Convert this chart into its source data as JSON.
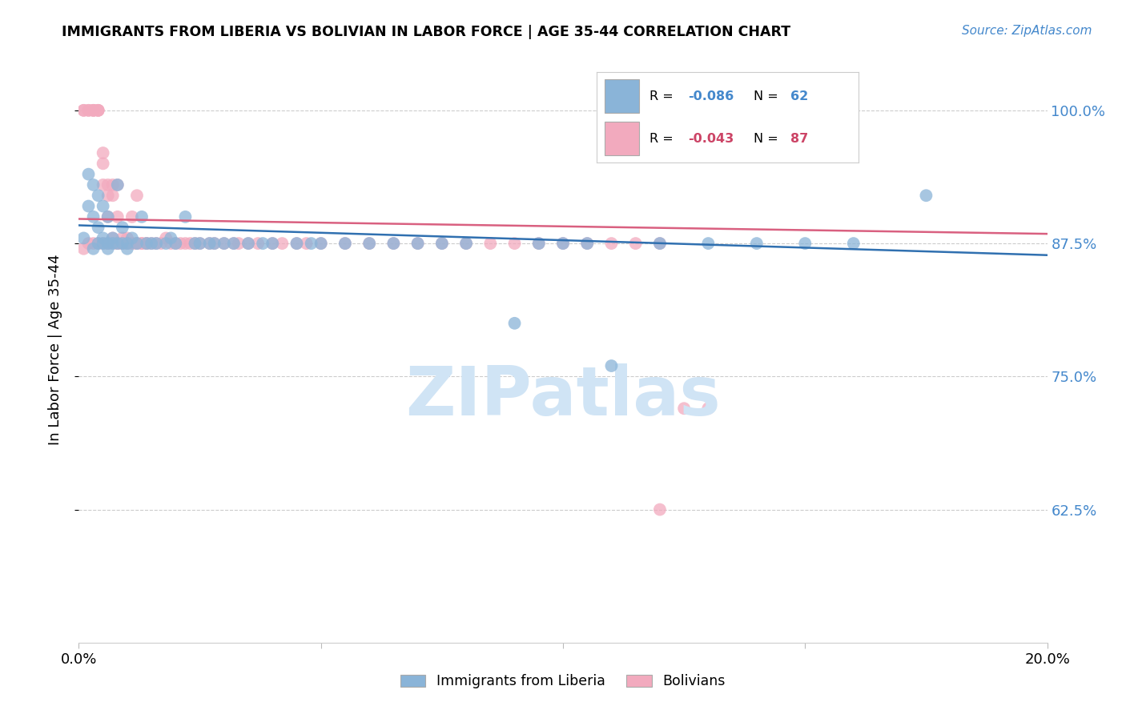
{
  "title": "IMMIGRANTS FROM LIBERIA VS BOLIVIAN IN LABOR FORCE | AGE 35-44 CORRELATION CHART",
  "source": "Source: ZipAtlas.com",
  "ylabel": "In Labor Force | Age 35-44",
  "xlim": [
    0.0,
    0.2
  ],
  "ylim": [
    0.5,
    1.05
  ],
  "yticks": [
    0.625,
    0.75,
    0.875,
    1.0
  ],
  "ytick_labels": [
    "62.5%",
    "75.0%",
    "87.5%",
    "100.0%"
  ],
  "xticks": [
    0.0,
    0.05,
    0.1,
    0.15,
    0.2
  ],
  "xtick_labels": [
    "0.0%",
    "",
    "",
    "",
    "20.0%"
  ],
  "legend_label_blue": "Immigrants from Liberia",
  "legend_label_pink": "Bolivians",
  "R_blue": -0.086,
  "N_blue": 62,
  "R_pink": -0.043,
  "N_pink": 87,
  "blue_color": "#8ab4d8",
  "pink_color": "#f2aabe",
  "blue_line_color": "#3070b0",
  "pink_line_color": "#d96080",
  "watermark_color": "#d0e4f5",
  "blue_x": [
    0.001,
    0.002,
    0.002,
    0.003,
    0.003,
    0.003,
    0.004,
    0.004,
    0.004,
    0.005,
    0.005,
    0.005,
    0.006,
    0.006,
    0.006,
    0.007,
    0.007,
    0.008,
    0.008,
    0.009,
    0.009,
    0.01,
    0.01,
    0.011,
    0.012,
    0.013,
    0.014,
    0.015,
    0.016,
    0.018,
    0.019,
    0.02,
    0.022,
    0.024,
    0.025,
    0.027,
    0.028,
    0.03,
    0.032,
    0.035,
    0.038,
    0.04,
    0.045,
    0.048,
    0.05,
    0.055,
    0.06,
    0.065,
    0.07,
    0.075,
    0.08,
    0.09,
    0.095,
    0.1,
    0.105,
    0.11,
    0.12,
    0.13,
    0.14,
    0.15,
    0.16,
    0.175
  ],
  "blue_y": [
    0.88,
    0.91,
    0.94,
    0.87,
    0.9,
    0.93,
    0.875,
    0.89,
    0.92,
    0.875,
    0.88,
    0.91,
    0.875,
    0.87,
    0.9,
    0.875,
    0.88,
    0.875,
    0.93,
    0.875,
    0.89,
    0.875,
    0.87,
    0.88,
    0.875,
    0.9,
    0.875,
    0.875,
    0.875,
    0.875,
    0.88,
    0.875,
    0.9,
    0.875,
    0.875,
    0.875,
    0.875,
    0.875,
    0.875,
    0.875,
    0.875,
    0.875,
    0.875,
    0.875,
    0.875,
    0.875,
    0.875,
    0.875,
    0.875,
    0.875,
    0.875,
    0.8,
    0.875,
    0.875,
    0.875,
    0.76,
    0.875,
    0.875,
    0.875,
    0.875,
    0.875,
    0.92
  ],
  "pink_x": [
    0.001,
    0.001,
    0.002,
    0.002,
    0.003,
    0.003,
    0.003,
    0.004,
    0.004,
    0.004,
    0.005,
    0.005,
    0.005,
    0.006,
    0.006,
    0.006,
    0.006,
    0.007,
    0.007,
    0.007,
    0.008,
    0.008,
    0.008,
    0.009,
    0.009,
    0.01,
    0.01,
    0.011,
    0.011,
    0.012,
    0.012,
    0.013,
    0.014,
    0.015,
    0.016,
    0.017,
    0.018,
    0.019,
    0.02,
    0.021,
    0.022,
    0.023,
    0.024,
    0.025,
    0.027,
    0.028,
    0.03,
    0.032,
    0.033,
    0.035,
    0.037,
    0.04,
    0.042,
    0.045,
    0.047,
    0.05,
    0.055,
    0.06,
    0.065,
    0.07,
    0.075,
    0.08,
    0.085,
    0.09,
    0.095,
    0.1,
    0.105,
    0.11,
    0.115,
    0.12,
    0.001,
    0.002,
    0.003,
    0.004,
    0.005,
    0.006,
    0.007,
    0.008,
    0.009,
    0.01,
    0.011,
    0.012,
    0.013,
    0.014,
    0.12,
    0.125,
    0.13
  ],
  "pink_y": [
    1.0,
    1.0,
    1.0,
    1.0,
    1.0,
    1.0,
    1.0,
    1.0,
    1.0,
    1.0,
    0.96,
    0.95,
    0.93,
    0.92,
    0.9,
    0.93,
    0.875,
    0.93,
    0.92,
    0.875,
    0.875,
    0.93,
    0.9,
    0.88,
    0.875,
    0.88,
    0.875,
    0.9,
    0.875,
    0.875,
    0.92,
    0.875,
    0.875,
    0.875,
    0.875,
    0.875,
    0.88,
    0.875,
    0.875,
    0.875,
    0.875,
    0.875,
    0.875,
    0.875,
    0.875,
    0.875,
    0.875,
    0.875,
    0.875,
    0.875,
    0.875,
    0.875,
    0.875,
    0.875,
    0.875,
    0.875,
    0.875,
    0.875,
    0.875,
    0.875,
    0.875,
    0.875,
    0.875,
    0.875,
    0.875,
    0.875,
    0.875,
    0.875,
    0.875,
    0.875,
    0.87,
    0.875,
    0.875,
    0.875,
    0.875,
    0.875,
    0.88,
    0.875,
    0.875,
    0.875,
    0.875,
    0.875,
    0.875,
    0.875,
    0.625,
    0.72,
    0.72
  ],
  "blue_trend_x": [
    0.0,
    0.2
  ],
  "blue_trend_y": [
    0.892,
    0.864
  ],
  "pink_trend_x": [
    0.0,
    0.2
  ],
  "pink_trend_y": [
    0.898,
    0.884
  ]
}
